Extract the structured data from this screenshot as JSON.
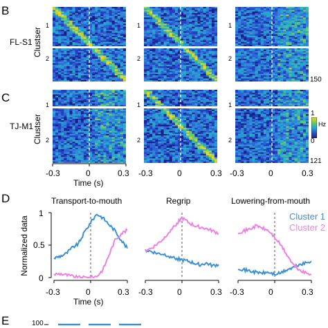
{
  "panels": {
    "B": "B",
    "C": "C",
    "D": "D",
    "E": "E"
  },
  "rows": {
    "fls1": {
      "label": "FL-S1",
      "axis": "Clustser",
      "cluster_labels": [
        "1",
        "2"
      ],
      "count": "150"
    },
    "tjm1": {
      "label": "TJ-M1",
      "axis": "Clustser",
      "cluster_labels": [
        "1",
        "2"
      ],
      "count": "121"
    }
  },
  "colorbar": {
    "max": "1",
    "unit": "Hz",
    "min": "0",
    "colors": [
      "#2c1a7a",
      "#2a55c8",
      "#22a8d8",
      "#6ad05a",
      "#f2d21a"
    ]
  },
  "time_axis": {
    "ticks": [
      "-0.3",
      "0",
      "0.3"
    ],
    "label": "Time (s)"
  },
  "chart_data": [
    {
      "type": "line",
      "title": "Transport-to-mouth",
      "xlabel": "Time (s)",
      "ylabel": "Normalized data",
      "xlim": [
        -0.3,
        0.3
      ],
      "ylim": [
        0,
        1
      ],
      "x_ticks": [
        "-0.3",
        "0",
        "0.3"
      ],
      "y_ticks": [
        "0",
        "0.5",
        "1"
      ],
      "vline": 0,
      "series": [
        {
          "name": "Cluster 1",
          "color": "#3a8fd6",
          "x": [
            -0.3,
            -0.25,
            -0.2,
            -0.15,
            -0.1,
            -0.05,
            0,
            0.05,
            0.1,
            0.15,
            0.2,
            0.25,
            0.3
          ],
          "y": [
            0.3,
            0.33,
            0.37,
            0.46,
            0.52,
            0.7,
            0.85,
            0.98,
            0.92,
            0.82,
            0.72,
            0.58,
            0.45
          ]
        },
        {
          "name": "Cluster 2",
          "color": "#ef7fe3",
          "x": [
            -0.3,
            -0.25,
            -0.2,
            -0.15,
            -0.1,
            -0.05,
            0,
            0.05,
            0.1,
            0.15,
            0.2,
            0.25,
            0.3
          ],
          "y": [
            0.05,
            0.06,
            0.04,
            0.02,
            0.0,
            0.0,
            0.0,
            0.02,
            0.12,
            0.35,
            0.58,
            0.68,
            0.73
          ]
        }
      ]
    },
    {
      "type": "line",
      "title": "Regrip",
      "xlim": [
        -0.3,
        0.3
      ],
      "ylim": [
        0,
        1
      ],
      "x_ticks": [
        "-0.3",
        "0",
        "0.3"
      ],
      "vline": 0,
      "series": [
        {
          "name": "Cluster 1",
          "color": "#3a8fd6",
          "x": [
            -0.3,
            -0.25,
            -0.2,
            -0.15,
            -0.1,
            -0.05,
            0,
            0.05,
            0.1,
            0.15,
            0.2,
            0.25,
            0.3
          ],
          "y": [
            0.42,
            0.4,
            0.37,
            0.36,
            0.33,
            0.3,
            0.27,
            0.25,
            0.22,
            0.2,
            0.22,
            0.18,
            0.2
          ]
        },
        {
          "name": "Cluster 2",
          "color": "#ef7fe3",
          "x": [
            -0.3,
            -0.25,
            -0.2,
            -0.15,
            -0.1,
            -0.05,
            0,
            0.05,
            0.1,
            0.15,
            0.2,
            0.25,
            0.3
          ],
          "y": [
            0.42,
            0.45,
            0.52,
            0.6,
            0.72,
            0.82,
            0.92,
            0.85,
            0.8,
            0.78,
            0.75,
            0.72,
            0.68
          ]
        }
      ]
    },
    {
      "type": "line",
      "title": "Lowering-from-mouth",
      "xlim": [
        -0.3,
        0.3
      ],
      "ylim": [
        0,
        1
      ],
      "x_ticks": [
        "-0.3",
        "0",
        "0.3"
      ],
      "vline": 0,
      "series": [
        {
          "name": "Cluster 1",
          "color": "#3a8fd6",
          "x": [
            -0.3,
            -0.25,
            -0.2,
            -0.15,
            -0.1,
            -0.05,
            0,
            0.05,
            0.1,
            0.15,
            0.2,
            0.25,
            0.3
          ],
          "y": [
            0.15,
            0.12,
            0.1,
            0.08,
            0.07,
            0.08,
            0.05,
            0.07,
            0.12,
            0.15,
            0.2,
            0.22,
            0.25
          ]
        },
        {
          "name": "Cluster 2",
          "color": "#ef7fe3",
          "x": [
            -0.3,
            -0.25,
            -0.2,
            -0.15,
            -0.1,
            -0.05,
            0,
            0.05,
            0.1,
            0.15,
            0.2,
            0.25,
            0.3
          ],
          "y": [
            0.7,
            0.72,
            0.75,
            0.8,
            0.76,
            0.72,
            0.62,
            0.5,
            0.35,
            0.2,
            0.12,
            0.07,
            0.05
          ]
        }
      ]
    }
  ],
  "legend": {
    "cluster1": "Cluster 1",
    "cluster2": "Cluster 2"
  },
  "panel_e": {
    "y_tick": "100"
  }
}
